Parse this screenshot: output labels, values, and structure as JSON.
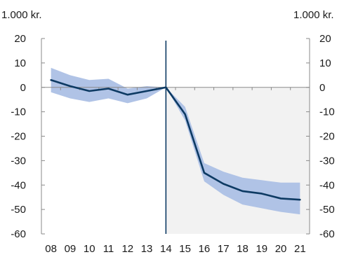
{
  "chart_data": {
    "type": "line",
    "ylabel_left": "1.000 kr.",
    "ylabel_right": "1.000 kr.",
    "categories": [
      "08",
      "09",
      "10",
      "11",
      "12",
      "13",
      "14",
      "15",
      "16",
      "17",
      "18",
      "19",
      "20",
      "21"
    ],
    "ylim": [
      -60,
      20
    ],
    "yticks": [
      20,
      10,
      0,
      -10,
      -20,
      -30,
      -40,
      -50,
      -60
    ],
    "vertical_line_at": "14",
    "shaded_region_from": "14",
    "series": [
      {
        "values": [
          3,
          0.5,
          -1.5,
          -0.5,
          -3,
          -1.5,
          0,
          -11,
          -35,
          -39.5,
          -42.5,
          -43.5,
          -45.5,
          -46
        ],
        "upper": [
          8,
          5,
          3,
          3.5,
          -0.5,
          0.5,
          0,
          -8,
          -31,
          -34.5,
          -37,
          -38,
          -39,
          -39
        ],
        "lower": [
          -2,
          -4.5,
          -6,
          -4.5,
          -6.5,
          -4.5,
          0,
          -13.5,
          -38.5,
          -44,
          -48,
          -49.5,
          -51,
          -52
        ]
      }
    ],
    "colors": {
      "line": "#0d3a63",
      "band": "#b0c3e6",
      "shade": "#f2f2f2",
      "axis": "#8a8a8a",
      "vline": "#0d3a63"
    }
  }
}
